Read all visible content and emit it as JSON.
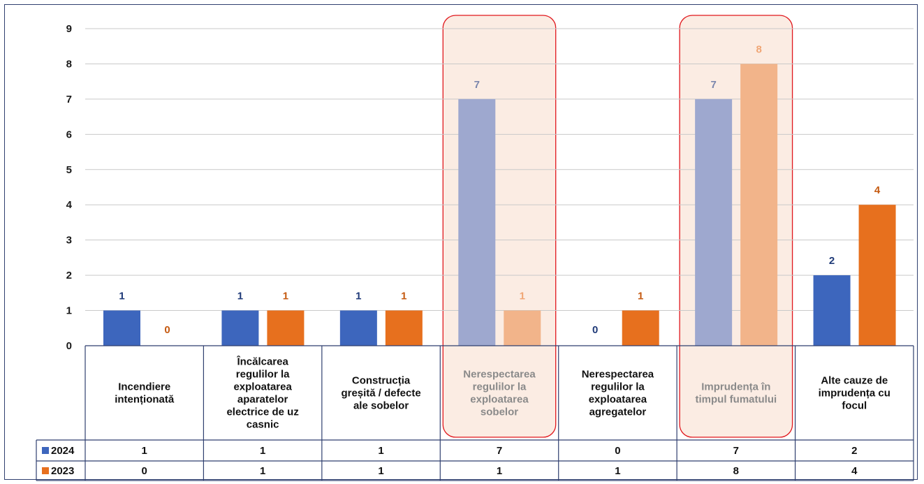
{
  "colors": {
    "s2024": "#3d66bd",
    "s2024_light": "#9ea8cf",
    "s2023": "#e7701e",
    "s2023_light": "#f2b48a",
    "highlight_fill": "#fbece3",
    "highlight_stroke": "#e0161c",
    "label_2024": "#1f3a78",
    "label_2024_faded": "#7a86ad",
    "label_2023": "#c55a11",
    "label_2023_faded": "#f0a574"
  },
  "chart_data": {
    "type": "bar",
    "categories": [
      [
        "Incendiere",
        "intenționată"
      ],
      [
        "Încălcarea",
        "regulilor la",
        "exploatarea",
        "aparatelor",
        "electrice de uz",
        "casnic"
      ],
      [
        "Construcția",
        "greșită / defecte",
        "ale sobelor"
      ],
      [
        "Nerespectarea",
        "regulilor la",
        "exploatarea",
        "sobelor"
      ],
      [
        "Nerespectarea",
        "regulilor la",
        "exploatarea",
        "agregatelor"
      ],
      [
        "Imprudența în",
        "timpul fumatului"
      ],
      [
        "Alte cauze de",
        "imprudența cu",
        "focul"
      ]
    ],
    "series": [
      {
        "name": "2024",
        "values": [
          1,
          1,
          1,
          7,
          0,
          7,
          2
        ]
      },
      {
        "name": "2023",
        "values": [
          0,
          1,
          1,
          1,
          1,
          8,
          4
        ]
      }
    ],
    "ylim": [
      0,
      9
    ],
    "yticks": [
      0,
      1,
      2,
      3,
      4,
      5,
      6,
      7,
      8,
      9
    ],
    "highlighted_categories": [
      3,
      5
    ],
    "grid": true,
    "legend": "data-table"
  }
}
